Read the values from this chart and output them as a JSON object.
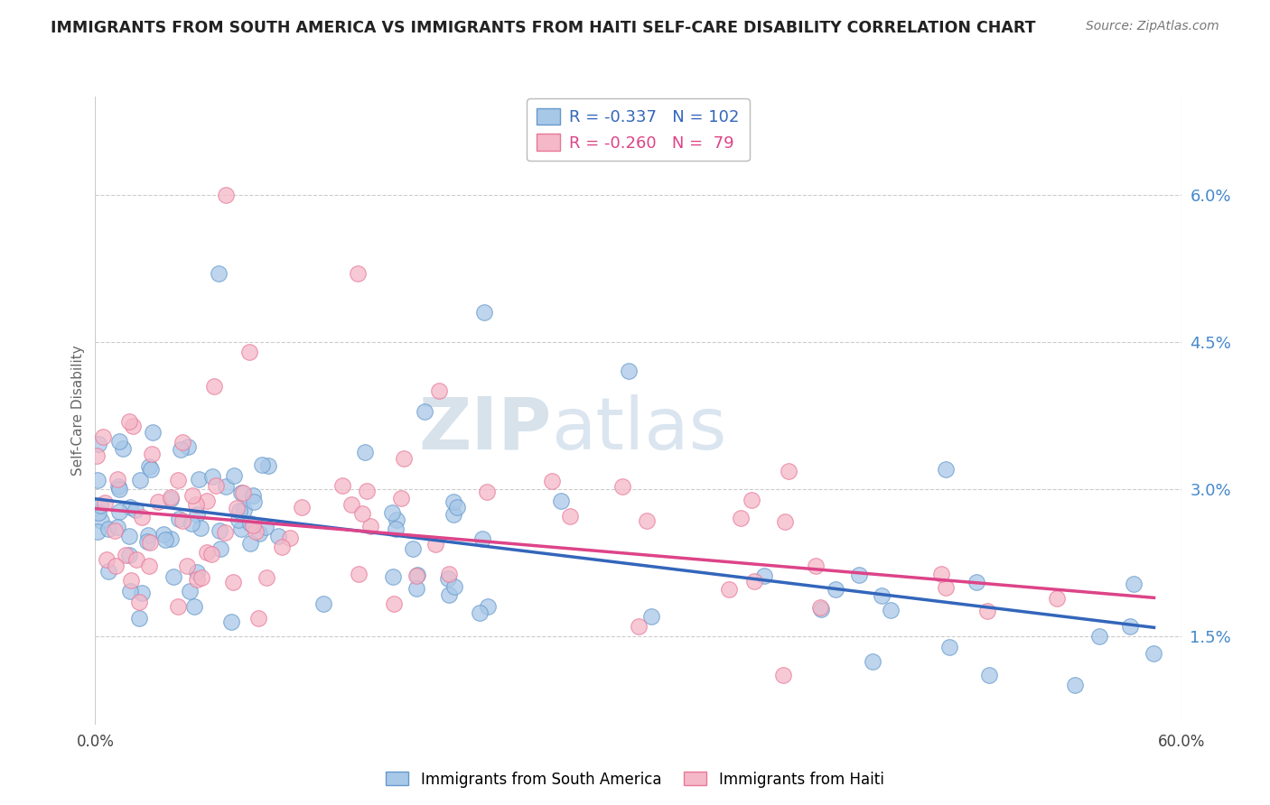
{
  "title": "IMMIGRANTS FROM SOUTH AMERICA VS IMMIGRANTS FROM HAITI SELF-CARE DISABILITY CORRELATION CHART",
  "source": "Source: ZipAtlas.com",
  "ylabel": "Self-Care Disability",
  "label_blue": "Immigrants from South America",
  "label_pink": "Immigrants from Haiti",
  "watermark_zip": "ZIP",
  "watermark_atlas": "atlas",
  "legend_blue_r": "-0.337",
  "legend_blue_n": "102",
  "legend_pink_r": "-0.260",
  "legend_pink_n": " 79",
  "blue_fill": "#a8c8e8",
  "blue_edge": "#6699cc",
  "pink_fill": "#f4b8c8",
  "pink_edge": "#e87898",
  "blue_line": "#3366bb",
  "pink_line": "#dd4488",
  "ytick_color": "#4488cc",
  "grid_color": "#cccccc",
  "xlim": [
    0.0,
    0.6
  ],
  "ylim": [
    0.006,
    0.07
  ],
  "ytick_vals": [
    0.015,
    0.03,
    0.045,
    0.06
  ],
  "ytick_labels": [
    "1.5%",
    "3.0%",
    "4.5%",
    "6.0%"
  ]
}
